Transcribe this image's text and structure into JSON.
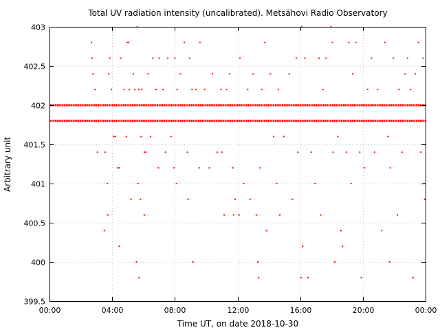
{
  "chart_data": {
    "type": "scatter",
    "title": "Total UV radiation intensity (uncalibrated). Metsähovi Radio Observatory",
    "xlabel": "Time UT, on date 2018-10-30",
    "ylabel": "Arbitrary unit",
    "xlim": [
      0,
      24
    ],
    "ylim": [
      399.5,
      403
    ],
    "x_tick_labels": [
      "00:00",
      "04:00",
      "08:00",
      "12:00",
      "16:00",
      "20:00",
      "00:00"
    ],
    "y_tick_labels": [
      "399.5",
      "400",
      "400.5",
      "401",
      "401.5",
      "402",
      "402.5",
      "403"
    ],
    "grid": true,
    "legend": "none",
    "marker_color": "#ff0000",
    "dense_bands": [
      {
        "y": 401.8,
        "x_start": 0,
        "x_end": 24
      },
      {
        "y": 402.0,
        "x_start": 0,
        "x_end": 24
      }
    ],
    "series": [
      {
        "points": [
          [
            2.68,
            402.8
          ],
          [
            2.72,
            402.6
          ],
          [
            2.78,
            402.4
          ],
          [
            2.9,
            402.2
          ],
          [
            3.06,
            401.4
          ],
          [
            3.5,
            400.4
          ],
          [
            3.55,
            401.4
          ],
          [
            3.7,
            401.0
          ],
          [
            3.72,
            400.6
          ],
          [
            3.78,
            402.4
          ],
          [
            3.85,
            402.6
          ],
          [
            3.95,
            402.2
          ],
          [
            4.1,
            401.6
          ],
          [
            4.2,
            401.6
          ],
          [
            4.35,
            401.2
          ],
          [
            4.45,
            401.2
          ],
          [
            4.45,
            400.2
          ],
          [
            4.55,
            402.6
          ],
          [
            4.75,
            402.2
          ],
          [
            4.9,
            401.6
          ],
          [
            4.95,
            402.8
          ],
          [
            5.05,
            402.8
          ],
          [
            5.1,
            402.2
          ],
          [
            5.2,
            400.8
          ],
          [
            5.35,
            402.4
          ],
          [
            5.45,
            402.2
          ],
          [
            5.55,
            400.0
          ],
          [
            5.6,
            403.0
          ],
          [
            5.65,
            401.0
          ],
          [
            5.7,
            402.2
          ],
          [
            5.72,
            399.8
          ],
          [
            5.8,
            400.8
          ],
          [
            5.85,
            401.6
          ],
          [
            5.9,
            402.2
          ],
          [
            6.05,
            401.4
          ],
          [
            6.05,
            400.6
          ],
          [
            6.15,
            401.4
          ],
          [
            6.3,
            402.4
          ],
          [
            6.45,
            401.6
          ],
          [
            6.6,
            402.6
          ],
          [
            6.8,
            402.2
          ],
          [
            6.95,
            401.2
          ],
          [
            7.0,
            402.6
          ],
          [
            7.25,
            402.2
          ],
          [
            7.4,
            401.4
          ],
          [
            7.55,
            402.6
          ],
          [
            7.75,
            401.6
          ],
          [
            7.95,
            401.2
          ],
          [
            8.0,
            402.6
          ],
          [
            8.1,
            401.0
          ],
          [
            8.15,
            402.2
          ],
          [
            8.35,
            402.4
          ],
          [
            8.6,
            402.8
          ],
          [
            8.8,
            401.4
          ],
          [
            8.85,
            400.8
          ],
          [
            8.95,
            402.6
          ],
          [
            9.1,
            402.2
          ],
          [
            9.15,
            400.0
          ],
          [
            9.35,
            402.2
          ],
          [
            9.55,
            401.2
          ],
          [
            9.6,
            402.8
          ],
          [
            9.9,
            402.2
          ],
          [
            10.2,
            401.2
          ],
          [
            10.4,
            402.4
          ],
          [
            10.7,
            401.4
          ],
          [
            10.95,
            402.2
          ],
          [
            11.0,
            401.4
          ],
          [
            11.15,
            400.6
          ],
          [
            11.3,
            402.2
          ],
          [
            11.5,
            402.4
          ],
          [
            11.7,
            401.2
          ],
          [
            11.75,
            400.6
          ],
          [
            11.85,
            400.8
          ],
          [
            12.1,
            400.6
          ],
          [
            12.15,
            402.6
          ],
          [
            12.4,
            401.0
          ],
          [
            12.65,
            402.2
          ],
          [
            12.8,
            400.8
          ],
          [
            13.0,
            402.4
          ],
          [
            13.2,
            400.6
          ],
          [
            13.3,
            400.0
          ],
          [
            13.35,
            399.8
          ],
          [
            13.45,
            401.2
          ],
          [
            13.55,
            402.2
          ],
          [
            13.75,
            402.8
          ],
          [
            13.85,
            400.4
          ],
          [
            14.1,
            402.4
          ],
          [
            14.3,
            401.6
          ],
          [
            14.5,
            401.0
          ],
          [
            14.6,
            402.2
          ],
          [
            14.7,
            400.6
          ],
          [
            14.95,
            401.6
          ],
          [
            15.3,
            402.4
          ],
          [
            15.5,
            400.8
          ],
          [
            15.75,
            402.6
          ],
          [
            15.85,
            401.4
          ],
          [
            16.05,
            399.8
          ],
          [
            16.1,
            403.0
          ],
          [
            16.15,
            400.2
          ],
          [
            16.3,
            402.6
          ],
          [
            16.5,
            399.8
          ],
          [
            16.7,
            401.4
          ],
          [
            16.95,
            401.0
          ],
          [
            17.2,
            402.6
          ],
          [
            17.3,
            400.6
          ],
          [
            17.45,
            402.2
          ],
          [
            17.65,
            402.6
          ],
          [
            17.95,
            403.0
          ],
          [
            18.05,
            402.8
          ],
          [
            18.1,
            401.4
          ],
          [
            18.2,
            400.0
          ],
          [
            18.4,
            401.6
          ],
          [
            18.6,
            400.4
          ],
          [
            18.7,
            400.2
          ],
          [
            18.95,
            401.4
          ],
          [
            19.1,
            402.8
          ],
          [
            19.25,
            401.0
          ],
          [
            19.35,
            402.4
          ],
          [
            19.55,
            402.8
          ],
          [
            19.8,
            401.4
          ],
          [
            19.9,
            399.8
          ],
          [
            20.1,
            401.2
          ],
          [
            20.3,
            402.2
          ],
          [
            20.55,
            402.6
          ],
          [
            20.75,
            401.4
          ],
          [
            20.95,
            402.2
          ],
          [
            21.2,
            400.4
          ],
          [
            21.4,
            402.8
          ],
          [
            21.6,
            401.6
          ],
          [
            21.7,
            400.0
          ],
          [
            21.75,
            401.2
          ],
          [
            21.95,
            402.6
          ],
          [
            22.2,
            400.6
          ],
          [
            22.3,
            402.2
          ],
          [
            22.5,
            401.4
          ],
          [
            22.7,
            402.4
          ],
          [
            22.85,
            402.6
          ],
          [
            23.05,
            402.2
          ],
          [
            23.2,
            399.8
          ],
          [
            23.35,
            402.4
          ],
          [
            23.55,
            402.8
          ],
          [
            23.7,
            401.4
          ],
          [
            23.85,
            402.6
          ],
          [
            23.9,
            401.0
          ],
          [
            23.95,
            400.8
          ]
        ]
      }
    ]
  }
}
